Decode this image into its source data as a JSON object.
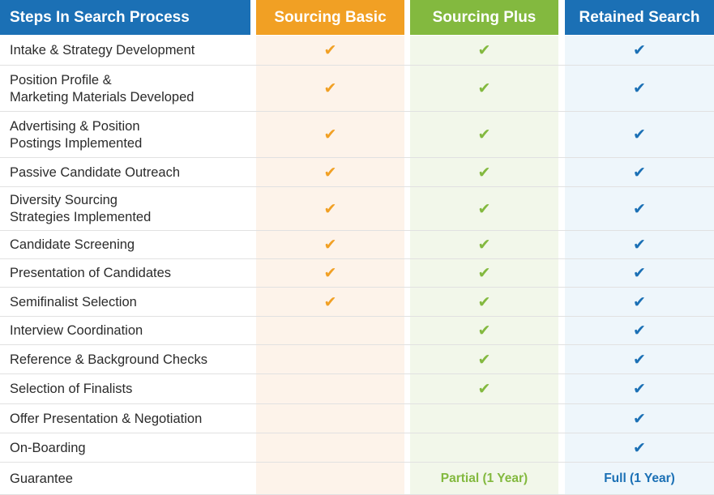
{
  "headers": {
    "steps": "Steps In Search Process",
    "basic": "Sourcing Basic",
    "plus": "Sourcing Plus",
    "retained": "Retained Search"
  },
  "colors": {
    "orange": "#f1a024",
    "green": "#83b93f",
    "blue": "#1b70b5"
  },
  "check_icon": "check-mark-icon",
  "rows": [
    {
      "label": "Intake & Strategy Development",
      "basic": true,
      "plus": true,
      "retained": true
    },
    {
      "label": "Position Profile &\nMarketing Materials Developed",
      "basic": true,
      "plus": true,
      "retained": true
    },
    {
      "label": "Advertising & Position\nPostings Implemented",
      "basic": true,
      "plus": true,
      "retained": true
    },
    {
      "label": "Passive Candidate Outreach",
      "basic": true,
      "plus": true,
      "retained": true
    },
    {
      "label": "Diversity Sourcing\nStrategies Implemented",
      "basic": true,
      "plus": true,
      "retained": true
    },
    {
      "label": "Candidate Screening",
      "basic": true,
      "plus": true,
      "retained": true
    },
    {
      "label": "Presentation of Candidates",
      "basic": true,
      "plus": true,
      "retained": true
    },
    {
      "label": "Semifinalist Selection",
      "basic": true,
      "plus": true,
      "retained": true
    },
    {
      "label": "Interview Coordination",
      "basic": false,
      "plus": true,
      "retained": true
    },
    {
      "label": "Reference & Background Checks",
      "basic": false,
      "plus": true,
      "retained": true
    },
    {
      "label": "Selection of Finalists",
      "basic": false,
      "plus": true,
      "retained": true
    },
    {
      "label": "Offer Presentation & Negotiation",
      "basic": false,
      "plus": false,
      "retained": true
    },
    {
      "label": "On-Boarding",
      "basic": false,
      "plus": false,
      "retained": true
    }
  ],
  "guarantee": {
    "label": "Guarantee",
    "basic": "",
    "plus": "Partial (1 Year)",
    "retained": "Full (1 Year)"
  }
}
